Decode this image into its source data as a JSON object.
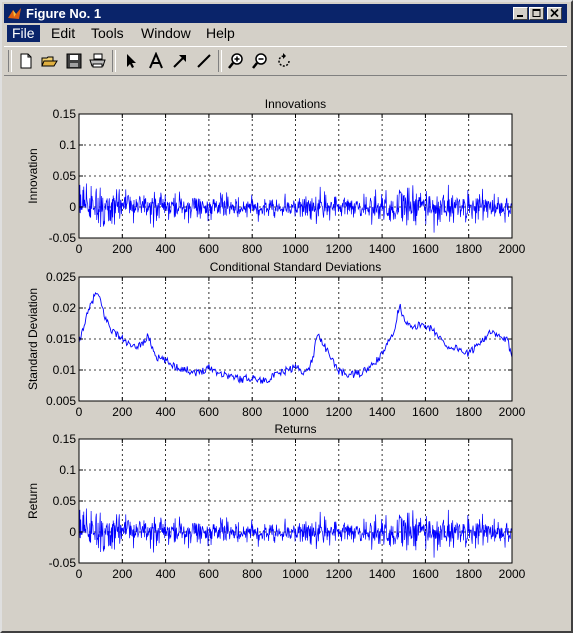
{
  "window": {
    "title": "Figure No. 1"
  },
  "menu": {
    "items": [
      "File",
      "Edit",
      "Tools",
      "Window",
      "Help"
    ],
    "active": "File"
  },
  "toolbar": {
    "buttons": [
      "new-file-icon",
      "open-folder-icon",
      "save-icon",
      "print-icon",
      "select-arrow-icon",
      "text-icon",
      "arrow-icon",
      "line-icon",
      "zoom-in-icon",
      "zoom-out-icon",
      "rotate-icon"
    ]
  },
  "chart_data": [
    {
      "type": "line",
      "title": "Innovations",
      "xlabel": "",
      "ylabel": "Innovation",
      "xlim": [
        0,
        2000
      ],
      "ylim": [
        -0.05,
        0.15
      ],
      "xticks": [
        0,
        200,
        400,
        600,
        800,
        1000,
        1200,
        1400,
        1600,
        1800,
        2000
      ],
      "yticks": [
        -0.05,
        0,
        0.05,
        0.1,
        0.15
      ],
      "ytick_labels": [
        "-0.05",
        "0",
        "0.05",
        "0.1",
        "0.15"
      ],
      "grid": true,
      "series": [
        {
          "kind": "noise",
          "color": "#0000ff",
          "x": [
            0,
            2000
          ],
          "mean": 0.0,
          "envelope_x": [
            0,
            80,
            200,
            400,
            600,
            800,
            1000,
            1080,
            1100,
            1200,
            1400,
            1470,
            1600,
            1800,
            2000
          ],
          "envelope": [
            0.017,
            0.022,
            0.015,
            0.011,
            0.01,
            0.009,
            0.01,
            0.015,
            0.013,
            0.009,
            0.014,
            0.02,
            0.016,
            0.013,
            0.012
          ]
        }
      ]
    },
    {
      "type": "line",
      "title": "Conditional Standard Deviations",
      "xlabel": "",
      "ylabel": "Standard Deviation",
      "xlim": [
        0,
        2000
      ],
      "ylim": [
        0.005,
        0.025
      ],
      "xticks": [
        0,
        200,
        400,
        600,
        800,
        1000,
        1200,
        1400,
        1600,
        1800,
        2000
      ],
      "yticks": [
        0.005,
        0.01,
        0.015,
        0.02,
        0.025
      ],
      "ytick_labels": [
        "0.005",
        "0.01",
        "0.015",
        "0.02",
        "0.025"
      ],
      "grid": true,
      "series": [
        {
          "kind": "line",
          "color": "#0000ff",
          "x": [
            0,
            20,
            40,
            60,
            80,
            100,
            120,
            150,
            200,
            250,
            300,
            320,
            340,
            360,
            400,
            450,
            500,
            550,
            600,
            650,
            700,
            750,
            800,
            850,
            900,
            950,
            1000,
            1050,
            1080,
            1100,
            1120,
            1150,
            1200,
            1250,
            1300,
            1350,
            1400,
            1430,
            1460,
            1480,
            1500,
            1540,
            1580,
            1620,
            1660,
            1700,
            1750,
            1800,
            1850,
            1900,
            1950,
            1980,
            2000
          ],
          "y": [
            0.014,
            0.017,
            0.019,
            0.021,
            0.0225,
            0.021,
            0.0185,
            0.0165,
            0.015,
            0.0135,
            0.0145,
            0.0155,
            0.0135,
            0.012,
            0.0115,
            0.0105,
            0.01,
            0.0095,
            0.0105,
            0.0095,
            0.009,
            0.0085,
            0.0088,
            0.0082,
            0.009,
            0.0098,
            0.0105,
            0.0095,
            0.0118,
            0.016,
            0.0148,
            0.0128,
            0.0098,
            0.0092,
            0.0095,
            0.0105,
            0.0125,
            0.0145,
            0.017,
            0.0205,
            0.0185,
            0.0165,
            0.0175,
            0.0168,
            0.0155,
            0.0138,
            0.0135,
            0.0125,
            0.0145,
            0.016,
            0.0152,
            0.0148,
            0.0115
          ]
        }
      ]
    },
    {
      "type": "line",
      "title": "Returns",
      "xlabel": "",
      "ylabel": "Return",
      "xlim": [
        0,
        2000
      ],
      "ylim": [
        -0.05,
        0.15
      ],
      "xticks": [
        0,
        200,
        400,
        600,
        800,
        1000,
        1200,
        1400,
        1600,
        1800,
        2000
      ],
      "yticks": [
        -0.05,
        0,
        0.05,
        0.1,
        0.15
      ],
      "ytick_labels": [
        "-0.05",
        "0",
        "0.05",
        "0.1",
        "0.15"
      ],
      "grid": true,
      "series": [
        {
          "kind": "noise",
          "color": "#0000ff",
          "x": [
            0,
            2000
          ],
          "mean": 0.0,
          "envelope_x": [
            0,
            80,
            200,
            400,
            600,
            800,
            1000,
            1080,
            1100,
            1200,
            1400,
            1470,
            1600,
            1800,
            2000
          ],
          "envelope": [
            0.017,
            0.022,
            0.015,
            0.011,
            0.01,
            0.009,
            0.01,
            0.015,
            0.013,
            0.009,
            0.014,
            0.02,
            0.016,
            0.013,
            0.012
          ]
        }
      ]
    }
  ]
}
